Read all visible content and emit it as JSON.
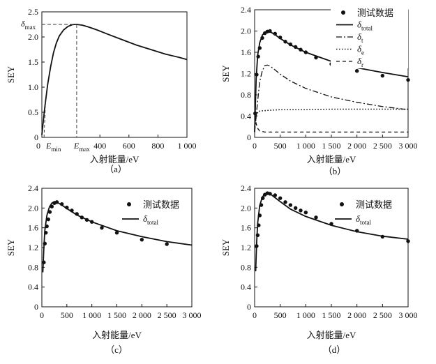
{
  "chart_data": [
    {
      "id": "a",
      "type": "line",
      "caption": "（a）",
      "ylabel": "SEY",
      "xlabel": "入射能量/eV",
      "xlim": [
        0,
        1000
      ],
      "ylim": [
        0,
        2.5
      ],
      "y_ticks": [
        "0",
        "0.5",
        "1.0",
        "1.5",
        "2.0",
        "2.5"
      ],
      "x_tick_vals": [
        400,
        600,
        800,
        1000
      ],
      "x_ticks": [
        "400",
        "600",
        "800",
        "1 000"
      ],
      "annotations": {
        "zero": "0",
        "emin_main": "E",
        "emin_sub": "min",
        "emax_main": "E",
        "emax_sub": "max",
        "dmax_main": "δ",
        "dmax_sub": "max"
      },
      "markers": {
        "e_min": 15,
        "e_max": 240,
        "delta_max": 2.25
      },
      "series": [
        {
          "style": "solid",
          "x": [
            0,
            20,
            40,
            60,
            80,
            100,
            120,
            150,
            180,
            210,
            240,
            280,
            320,
            380,
            450,
            550,
            650,
            750,
            850,
            950,
            1000
          ],
          "y": [
            0.05,
            0.6,
            1.05,
            1.4,
            1.68,
            1.88,
            2.02,
            2.14,
            2.21,
            2.245,
            2.25,
            2.235,
            2.2,
            2.14,
            2.06,
            1.95,
            1.84,
            1.75,
            1.66,
            1.59,
            1.55
          ]
        }
      ]
    },
    {
      "id": "b",
      "type": "line",
      "caption": "（b）",
      "ylabel": "SEY",
      "xlabel": "入射能量/eV",
      "xlim": [
        0,
        3000
      ],
      "ylim": [
        0,
        2.4
      ],
      "y_ticks": [
        "0",
        "0.4",
        "0.8",
        "1.2",
        "1.6",
        "2.0",
        "2.4"
      ],
      "x_tick_vals": [
        0,
        500,
        1000,
        1500,
        2000,
        2500,
        3000
      ],
      "x_ticks": [
        "0",
        "500",
        "1 000",
        "1 500",
        "2 000",
        "2 500",
        "3 000"
      ],
      "legend": [
        {
          "label": "测试数据",
          "style": "dots"
        },
        {
          "label": "δ",
          "sub": "total",
          "style": "solid"
        },
        {
          "label": "δ",
          "sub": "t",
          "style": "dashdot"
        },
        {
          "label": "δ",
          "sub": "e",
          "style": "dotted"
        },
        {
          "label": "δ",
          "sub": "r",
          "style": "dashed"
        }
      ],
      "points": {
        "x": [
          10,
          40,
          70,
          100,
          150,
          200,
          250,
          300,
          400,
          500,
          600,
          700,
          800,
          900,
          1000,
          1200,
          1500,
          2000,
          2500,
          3000
        ],
        "y": [
          0.45,
          1.18,
          1.52,
          1.68,
          1.87,
          1.96,
          1.99,
          2.0,
          1.95,
          1.88,
          1.8,
          1.75,
          1.7,
          1.65,
          1.6,
          1.5,
          1.38,
          1.25,
          1.16,
          1.08
        ]
      },
      "series": [
        {
          "style": "solid",
          "x": [
            0,
            30,
            60,
            100,
            150,
            200,
            250,
            300,
            400,
            500,
            700,
            1000,
            1500,
            2000,
            2500,
            3000
          ],
          "y": [
            0.1,
            1.1,
            1.55,
            1.78,
            1.92,
            1.98,
            2.0,
            1.99,
            1.93,
            1.86,
            1.74,
            1.6,
            1.43,
            1.31,
            1.22,
            1.14
          ]
        },
        {
          "style": "dashdot",
          "x": [
            0,
            50,
            100,
            150,
            200,
            250,
            300,
            400,
            500,
            700,
            1000,
            1500,
            2000,
            2500,
            3000
          ],
          "y": [
            0.1,
            0.6,
            1.05,
            1.25,
            1.35,
            1.36,
            1.34,
            1.27,
            1.19,
            1.06,
            0.92,
            0.76,
            0.66,
            0.58,
            0.52
          ]
        },
        {
          "style": "dotted",
          "x": [
            0,
            40,
            80,
            150,
            300,
            500,
            1000,
            1500,
            2000,
            2500,
            3000
          ],
          "y": [
            0.2,
            0.44,
            0.49,
            0.5,
            0.51,
            0.52,
            0.52,
            0.53,
            0.53,
            0.53,
            0.53
          ]
        },
        {
          "style": "dashed",
          "x": [
            0,
            20,
            50,
            100,
            200,
            400,
            1000,
            2000,
            3000
          ],
          "y": [
            0.4,
            0.3,
            0.18,
            0.12,
            0.1,
            0.1,
            0.1,
            0.1,
            0.1
          ]
        }
      ]
    },
    {
      "id": "c",
      "type": "line",
      "caption": "（c）",
      "ylabel": "SEY",
      "xlabel": "入射能量/eV",
      "xlim": [
        0,
        3000
      ],
      "ylim": [
        0,
        2.4
      ],
      "y_ticks": [
        "0",
        "0.4",
        "0.8",
        "1.2",
        "1.6",
        "2.0",
        "2.4"
      ],
      "x_tick_vals": [
        0,
        500,
        1000,
        1500,
        2000,
        2500,
        3000
      ],
      "x_ticks": [
        "0",
        "500",
        "1 000",
        "1 500",
        "2 000",
        "2 500",
        "3 000"
      ],
      "legend": [
        {
          "label": "测试数据",
          "style": "dots"
        },
        {
          "label": "δ",
          "sub": "total",
          "style": "solid"
        }
      ],
      "points": {
        "x": [
          40,
          60,
          80,
          100,
          130,
          160,
          200,
          250,
          300,
          400,
          500,
          600,
          700,
          800,
          900,
          1000,
          1200,
          1500,
          2000,
          2500
        ],
        "y": [
          0.9,
          1.28,
          1.5,
          1.63,
          1.77,
          1.92,
          2.03,
          2.1,
          2.12,
          2.08,
          2.01,
          1.95,
          1.88,
          1.81,
          1.76,
          1.72,
          1.6,
          1.5,
          1.36,
          1.27
        ]
      },
      "series": [
        {
          "style": "solid",
          "x": [
            20,
            40,
            60,
            100,
            150,
            200,
            250,
            300,
            400,
            500,
            700,
            1000,
            1500,
            2000,
            2500,
            3000
          ],
          "y": [
            0.7,
            1.2,
            1.55,
            1.85,
            2.02,
            2.1,
            2.13,
            2.12,
            2.06,
            1.99,
            1.86,
            1.72,
            1.54,
            1.42,
            1.32,
            1.25
          ]
        }
      ]
    },
    {
      "id": "d",
      "type": "line",
      "caption": "（d）",
      "ylabel": "SEY",
      "xlabel": "入射能量/eV",
      "xlim": [
        0,
        3000
      ],
      "ylim": [
        0,
        2.4
      ],
      "y_ticks": [
        "0",
        "0.4",
        "0.8",
        "1.2",
        "1.6",
        "2.0",
        "2.4"
      ],
      "x_tick_vals": [
        0,
        500,
        1000,
        1500,
        2000,
        2500,
        3000
      ],
      "x_ticks": [
        "0",
        "500",
        "1 000",
        "1 500",
        "2 000",
        "2 500",
        "3 000"
      ],
      "legend": [
        {
          "label": "测试数据",
          "style": "dots"
        },
        {
          "label": "δ",
          "sub": "total",
          "style": "solid"
        }
      ],
      "points": {
        "x": [
          40,
          60,
          80,
          100,
          130,
          160,
          200,
          250,
          300,
          400,
          500,
          600,
          700,
          800,
          900,
          1000,
          1200,
          1500,
          2000,
          2500,
          3000
        ],
        "y": [
          1.23,
          1.45,
          1.65,
          1.85,
          2.06,
          2.2,
          2.27,
          2.3,
          2.29,
          2.26,
          2.2,
          2.12,
          2.06,
          2.0,
          1.95,
          1.91,
          1.81,
          1.68,
          1.54,
          1.42,
          1.33
        ]
      },
      "series": [
        {
          "style": "solid",
          "x": [
            20,
            40,
            60,
            100,
            150,
            200,
            250,
            300,
            400,
            500,
            700,
            1000,
            1500,
            2000,
            2500,
            3000
          ],
          "y": [
            0.72,
            1.3,
            1.7,
            2.05,
            2.22,
            2.29,
            2.31,
            2.29,
            2.21,
            2.13,
            1.98,
            1.83,
            1.65,
            1.52,
            1.43,
            1.37
          ]
        }
      ]
    }
  ]
}
